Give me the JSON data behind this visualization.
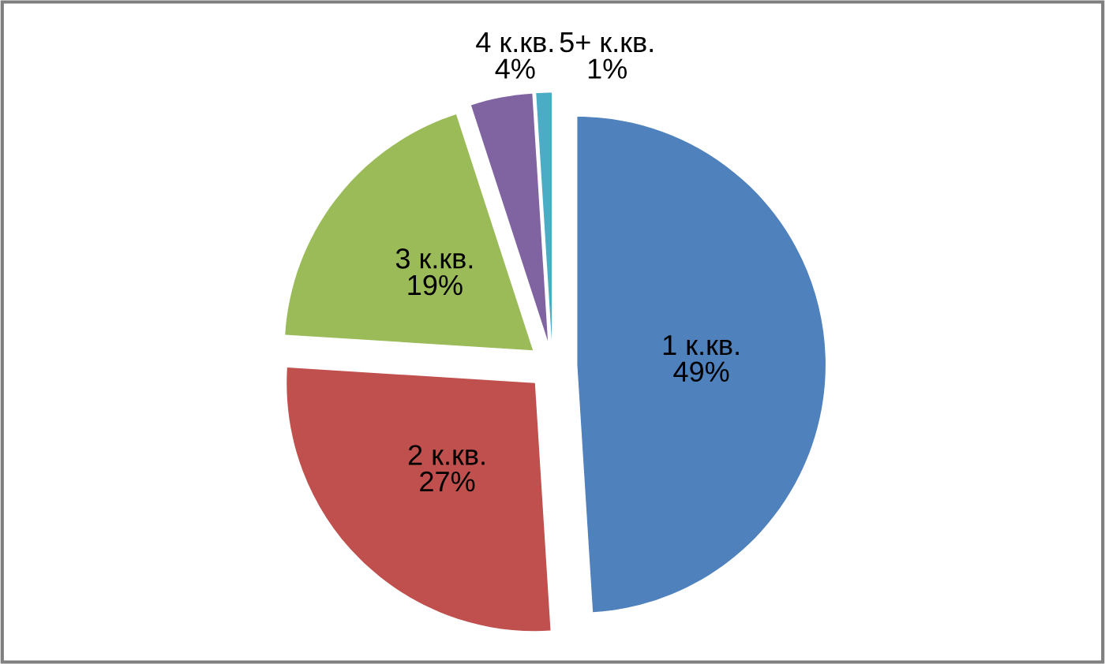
{
  "chart_data": {
    "type": "pie",
    "categories": [
      "1 к.кв.",
      "2 к.кв.",
      "3 к.кв.",
      "4 к.кв.",
      "5+ к.кв."
    ],
    "values": [
      49,
      27,
      19,
      4,
      1
    ],
    "colors": [
      "#4f81bd",
      "#c0504d",
      "#9bbb59",
      "#8064a2",
      "#4bacc6"
    ],
    "value_labels": [
      "49%",
      "27%",
      "19%",
      "4%",
      "1%"
    ],
    "legend": false
  }
}
